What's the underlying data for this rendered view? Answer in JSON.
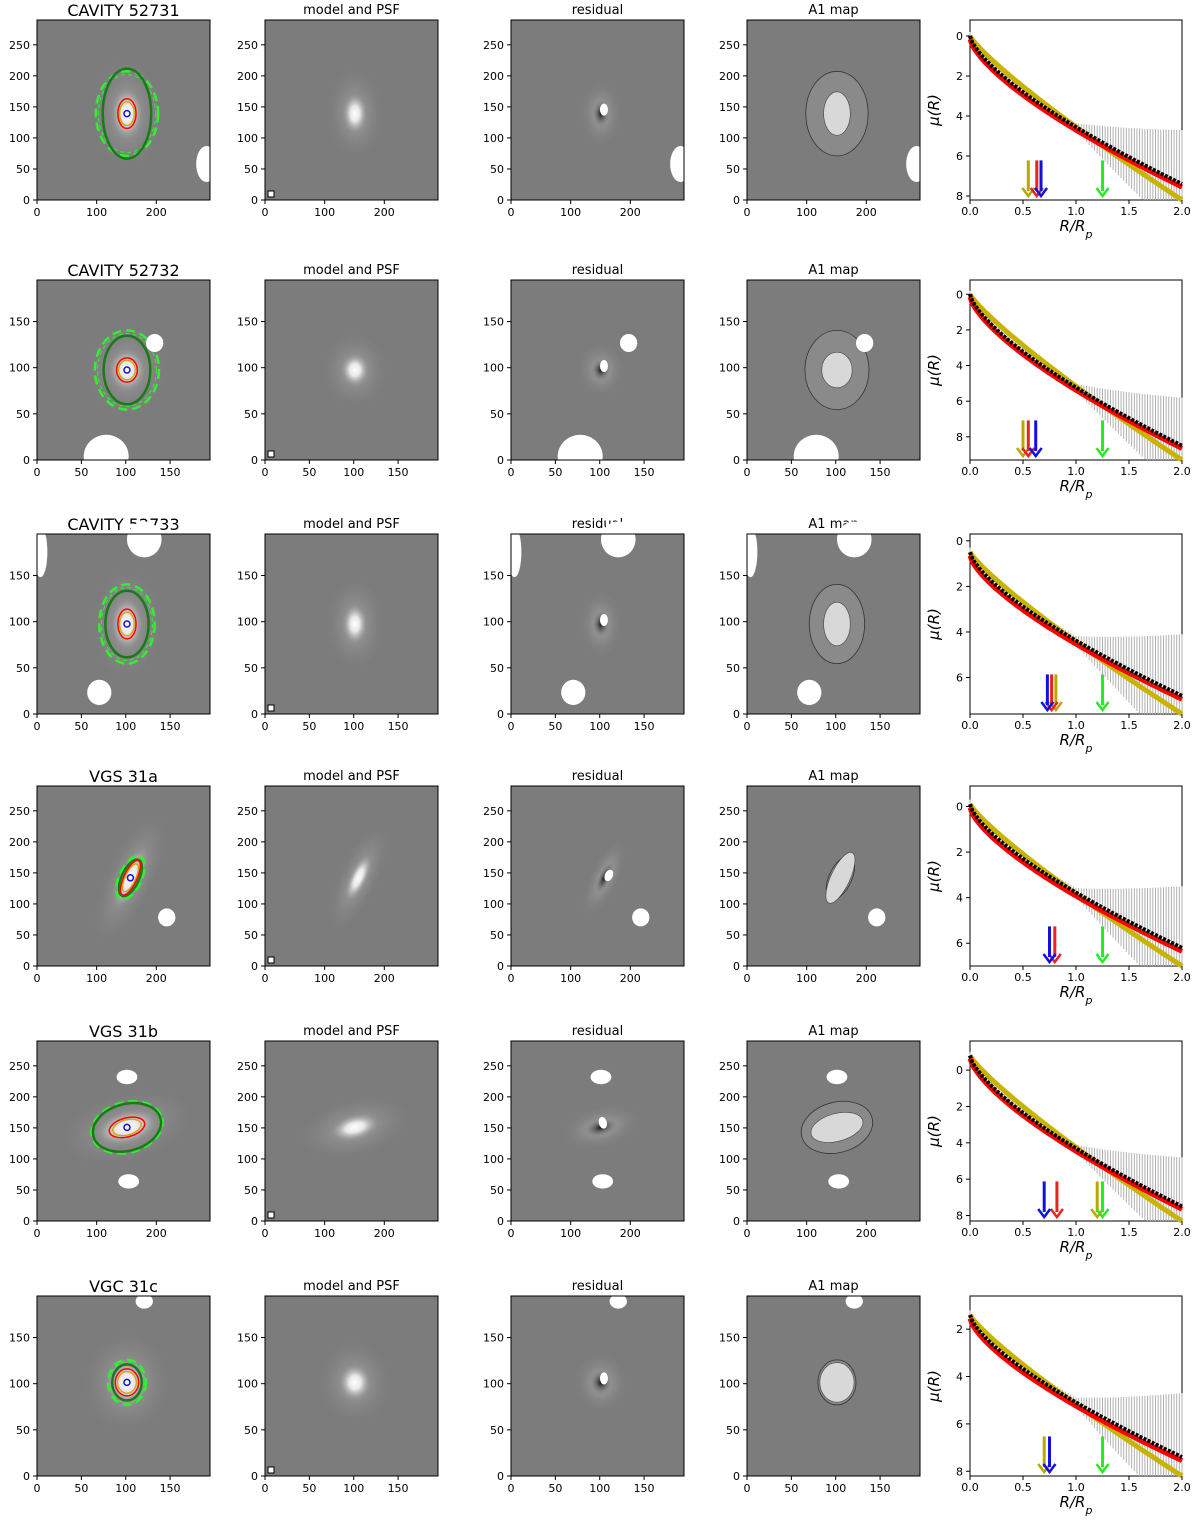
{
  "figure": {
    "panel_titles": {
      "model": "model and PSF",
      "residual": "residual",
      "a1": "A1 map"
    },
    "profile_axis": {
      "xlabel": "R/R_p",
      "ylabel": "μ(R)"
    },
    "colors": {
      "image_bg": "#7c7c7c",
      "profile_data": "#000000",
      "profile_errorbars": "#b0b0b0",
      "model_red": "#ff0000",
      "model_yellow": "#c8b400",
      "arrow_blue": "#1010e0",
      "arrow_red": "#ee2020",
      "arrow_yellow": "#b8a800",
      "arrow_green": "#22ee22",
      "isophote_dark_green": "#1a7a1a",
      "isophote_light_green": "#33ee33"
    }
  },
  "rows": [
    {
      "name": "CAVITY 52731",
      "img_ticks": [
        "0",
        "50",
        "100",
        "150",
        "200",
        "250"
      ],
      "img_xticks": [
        "0",
        "100",
        "200"
      ],
      "img_yticks": [
        "0",
        "50",
        "100",
        "150",
        "200",
        "250"
      ],
      "img_range": 290,
      "profile": {
        "xticks": [
          "0.0",
          "0.5",
          "1.0",
          "1.5",
          "2.0"
        ],
        "yticks": [
          "0",
          "2",
          "4",
          "6",
          "8"
        ],
        "ylim": [
          -0.8,
          8.2
        ],
        "arrows": {
          "yellow": 0.55,
          "red": 0.63,
          "blue": 0.67,
          "green": 1.25
        }
      }
    },
    {
      "name": "CAVITY 52732",
      "img_xticks": [
        "0",
        "50",
        "100",
        "150"
      ],
      "img_yticks": [
        "0",
        "50",
        "100",
        "150"
      ],
      "img_range": 195,
      "profile": {
        "xticks": [
          "0.0",
          "0.5",
          "1.0",
          "1.5",
          "2.0"
        ],
        "yticks": [
          "0",
          "2",
          "4",
          "6",
          "8"
        ],
        "ylim": [
          -0.8,
          9.3
        ],
        "arrows": {
          "yellow": 0.5,
          "red": 0.55,
          "blue": 0.62,
          "green": 1.25
        }
      }
    },
    {
      "name": "CAVITY 52733",
      "img_xticks": [
        "0",
        "50",
        "100",
        "150"
      ],
      "img_yticks": [
        "0",
        "50",
        "100",
        "150"
      ],
      "img_range": 195,
      "profile": {
        "xticks": [
          "0.0",
          "0.5",
          "1.0",
          "1.5",
          "2.0"
        ],
        "yticks": [
          "0",
          "2",
          "4",
          "6"
        ],
        "ylim": [
          -0.3,
          7.6
        ],
        "arrows": {
          "blue": 0.73,
          "red": 0.77,
          "yellow": 0.81,
          "green": 1.25
        }
      }
    },
    {
      "name": "VGS 31a",
      "img_xticks": [
        "0",
        "100",
        "200"
      ],
      "img_yticks": [
        "0",
        "50",
        "100",
        "150",
        "200",
        "250"
      ],
      "img_range": 290,
      "profile": {
        "xticks": [
          "0.0",
          "0.5",
          "1.0",
          "1.5",
          "2.0"
        ],
        "yticks": [
          "0",
          "2",
          "4",
          "6"
        ],
        "ylim": [
          -0.9,
          7.0
        ],
        "arrows": {
          "blue": 0.75,
          "red": 0.8,
          "green": 1.25
        }
      }
    },
    {
      "name": "VGS 31b",
      "img_xticks": [
        "0",
        "100",
        "200"
      ],
      "img_yticks": [
        "0",
        "50",
        "100",
        "150",
        "200",
        "250"
      ],
      "img_range": 290,
      "profile": {
        "xticks": [
          "0.0",
          "0.5",
          "1.0",
          "1.5",
          "2.0"
        ],
        "yticks": [
          "0",
          "2",
          "4",
          "6",
          "8"
        ],
        "ylim": [
          -1.6,
          8.3
        ],
        "arrows": {
          "blue": 0.7,
          "red": 0.82,
          "yellow": 1.2,
          "green": 1.25
        }
      }
    },
    {
      "name": "VGC 31c",
      "img_xticks": [
        "0",
        "50",
        "100",
        "150"
      ],
      "img_yticks": [
        "0",
        "50",
        "100",
        "150"
      ],
      "img_range": 195,
      "profile": {
        "xticks": [
          "0.0",
          "0.5",
          "1.0",
          "1.5",
          "2.0"
        ],
        "yticks": [
          "2",
          "4",
          "6",
          "8"
        ],
        "ylim": [
          0.6,
          8.2
        ],
        "arrows": {
          "yellow": 0.7,
          "blue": 0.75,
          "green": 1.25
        }
      }
    }
  ]
}
